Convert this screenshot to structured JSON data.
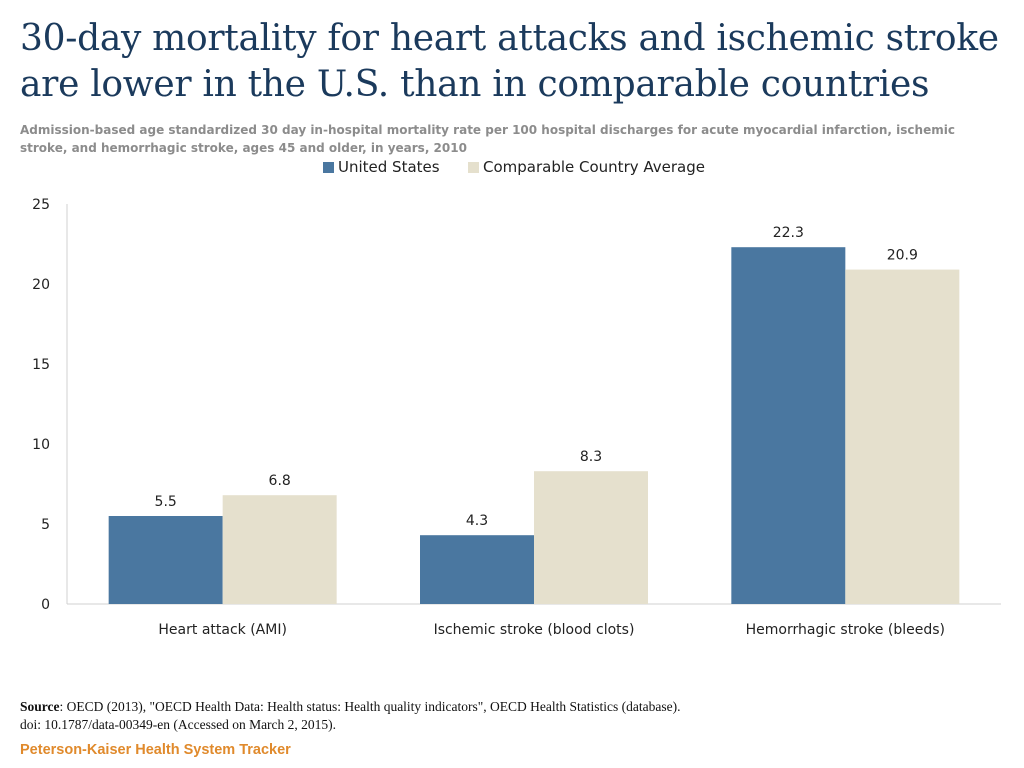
{
  "title": "30-day mortality for heart attacks and ischemic stroke are lower in the U.S. than in comparable countries",
  "subtitle": "Admission-based age standardized 30 day in-hospital mortality rate per 100 hospital discharges for acute myocardial infarction, ischemic stroke, and hemorrhagic stroke, ages 45 and older, in years, 2010",
  "legend": [
    {
      "label": "United States",
      "color": "#4a77a0"
    },
    {
      "label": "Comparable Country Average",
      "color": "#e5e0cd"
    }
  ],
  "chart_data": {
    "type": "bar",
    "categories": [
      "Heart attack (AMI)",
      "Ischemic stroke (blood clots)",
      "Hemorrhagic stroke (bleeds)"
    ],
    "series": [
      {
        "name": "United States",
        "values": [
          5.5,
          4.3,
          22.3
        ],
        "labels": [
          "5.5",
          "4.3",
          "22.3"
        ],
        "color": "#4a77a0"
      },
      {
        "name": "Comparable Country Average",
        "values": [
          6.8,
          8.3,
          20.9
        ],
        "labels": [
          "6.8",
          "8.3",
          "20.9"
        ],
        "color": "#e5e0cd"
      }
    ],
    "ylim": [
      0,
      25
    ],
    "yticks": [
      0,
      5,
      10,
      15,
      20,
      25
    ],
    "ytick_labels": [
      "0",
      "5",
      "10",
      "15",
      "20",
      "25"
    ],
    "xlabel": "",
    "ylabel": "",
    "grid": false,
    "legend_position": "top-center"
  },
  "source": {
    "label": "Source",
    "text": ": OECD (2013), \"OECD Health Data: Health status: Health quality  indicators\", OECD Health Statistics (database).",
    "doi": "doi: 10.1787/data-00349-en (Accessed on March 2,  2015)."
  },
  "brand": "Peterson-Kaiser Health System Tracker"
}
